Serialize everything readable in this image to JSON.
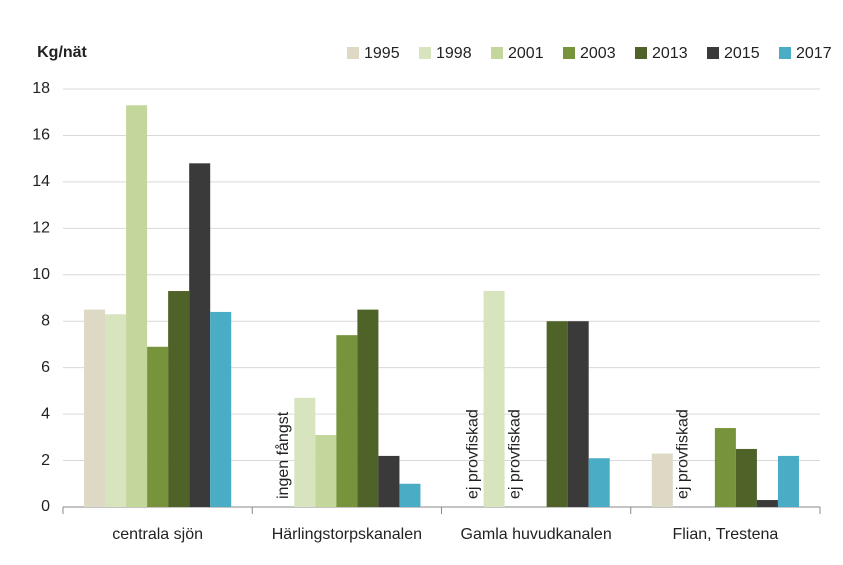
{
  "chart_data": {
    "type": "bar",
    "y_label": "Kg/nät",
    "categories": [
      "centrala sjön",
      "Härlingstorpskanalen",
      "Gamla huvudkanalen",
      "Flian, Trestena"
    ],
    "series": [
      {
        "name": "1995",
        "color": "#ddd9c4",
        "values": [
          8.5,
          null,
          null,
          2.3
        ],
        "value_labels": [
          null,
          "ingen fångst",
          "ej provfiskad",
          null
        ]
      },
      {
        "name": "1998",
        "color": "#d7e4bd",
        "values": [
          8.3,
          4.7,
          9.3,
          null
        ],
        "value_labels": [
          null,
          null,
          null,
          "ej provfiskad"
        ]
      },
      {
        "name": "2001",
        "color": "#c3d69b",
        "values": [
          17.3,
          3.1,
          null,
          null
        ],
        "value_labels": [
          null,
          null,
          "ej provfiskad",
          null
        ]
      },
      {
        "name": "2003",
        "color": "#77933c",
        "values": [
          6.9,
          7.4,
          null,
          3.4
        ]
      },
      {
        "name": "2013",
        "color": "#4f6228",
        "values": [
          9.3,
          8.5,
          8.0,
          2.5
        ]
      },
      {
        "name": "2015",
        "color": "#3a3a3a",
        "values": [
          14.8,
          2.2,
          8.0,
          0.3
        ]
      },
      {
        "name": "2017",
        "color": "#4bacc6",
        "values": [
          8.4,
          1.0,
          2.1,
          2.2
        ]
      }
    ],
    "ylim": [
      0,
      18
    ],
    "yticks": [
      0,
      2,
      4,
      6,
      8,
      10,
      12,
      14,
      16,
      18
    ],
    "grid": true,
    "legend": "top"
  }
}
